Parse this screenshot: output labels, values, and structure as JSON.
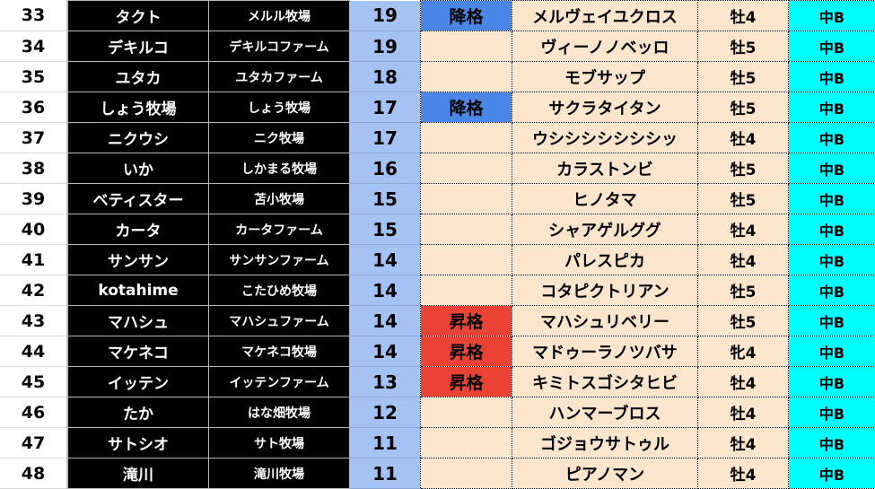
{
  "colors": {
    "owner_bg": "#000000",
    "points_bg": "#a4c2f4",
    "horse_bg": "#fce5cd",
    "class_bg": "#00ffff",
    "demotion": "#4a86e8",
    "promotion": "#ea4335"
  },
  "rows": [
    {
      "rank": "33",
      "owner": "タクト",
      "farm": "メルル牧場",
      "points": "19",
      "status": "降格",
      "horse": "メルヴェイユクロス",
      "sex_age": "牡4",
      "class": "中B"
    },
    {
      "rank": "34",
      "owner": "デキルコ",
      "farm": "デキルコファーム",
      "points": "19",
      "status": "",
      "horse": "ヴィーノノベッロ",
      "sex_age": "牡5",
      "class": "中B"
    },
    {
      "rank": "35",
      "owner": "ユタカ",
      "farm": "ユタカファーム",
      "points": "18",
      "status": "",
      "horse": "モブサップ",
      "sex_age": "牡5",
      "class": "中B"
    },
    {
      "rank": "36",
      "owner": "しょう牧場",
      "farm": "しょう牧場",
      "points": "17",
      "status": "降格",
      "horse": "サクラタイタン",
      "sex_age": "牡5",
      "class": "中B"
    },
    {
      "rank": "37",
      "owner": "ニクウシ",
      "farm": "ニク牧場",
      "points": "17",
      "status": "",
      "horse": "ウシシシシシシシッ",
      "sex_age": "牡4",
      "class": "中B"
    },
    {
      "rank": "38",
      "owner": "いか",
      "farm": "しかまる牧場",
      "points": "16",
      "status": "",
      "horse": "カラストンビ",
      "sex_age": "牡5",
      "class": "中B"
    },
    {
      "rank": "39",
      "owner": "ベティスター",
      "farm": "苫小牧場",
      "points": "15",
      "status": "",
      "horse": "ヒノタマ",
      "sex_age": "牡5",
      "class": "中B"
    },
    {
      "rank": "40",
      "owner": "カータ",
      "farm": "カータファーム",
      "points": "15",
      "status": "",
      "horse": "シャアゲルググ",
      "sex_age": "牡4",
      "class": "中B"
    },
    {
      "rank": "41",
      "owner": "サンサン",
      "farm": "サンサンファーム",
      "points": "14",
      "status": "",
      "horse": "パレスピカ",
      "sex_age": "牡4",
      "class": "中B"
    },
    {
      "rank": "42",
      "owner": "kotahime",
      "farm": "こたひめ牧場",
      "points": "14",
      "status": "",
      "horse": "コタピクトリアン",
      "sex_age": "牡5",
      "class": "中B"
    },
    {
      "rank": "43",
      "owner": "マハシュ",
      "farm": "マハシュファーム",
      "points": "14",
      "status": "昇格",
      "horse": "マハシュリベリー",
      "sex_age": "牡5",
      "class": "中B"
    },
    {
      "rank": "44",
      "owner": "マケネコ",
      "farm": "マケネコ牧場",
      "points": "14",
      "status": "昇格",
      "horse": "マドゥーラノツバサ",
      "sex_age": "牝4",
      "class": "中B"
    },
    {
      "rank": "45",
      "owner": "イッテン",
      "farm": "イッテンファーム",
      "points": "13",
      "status": "昇格",
      "horse": "キミトスゴシタヒビ",
      "sex_age": "牡4",
      "class": "中B"
    },
    {
      "rank": "46",
      "owner": "たか",
      "farm": "はな畑牧場",
      "points": "12",
      "status": "",
      "horse": "ハンマーブロス",
      "sex_age": "牡4",
      "class": "中B"
    },
    {
      "rank": "47",
      "owner": "サトシオ",
      "farm": "サト牧場",
      "points": "11",
      "status": "",
      "horse": "ゴジョウサトゥル",
      "sex_age": "牡4",
      "class": "中B"
    },
    {
      "rank": "48",
      "owner": "滝川",
      "farm": "滝川牧場",
      "points": "11",
      "status": "",
      "horse": "ピアノマン",
      "sex_age": "牡4",
      "class": "中B"
    }
  ]
}
